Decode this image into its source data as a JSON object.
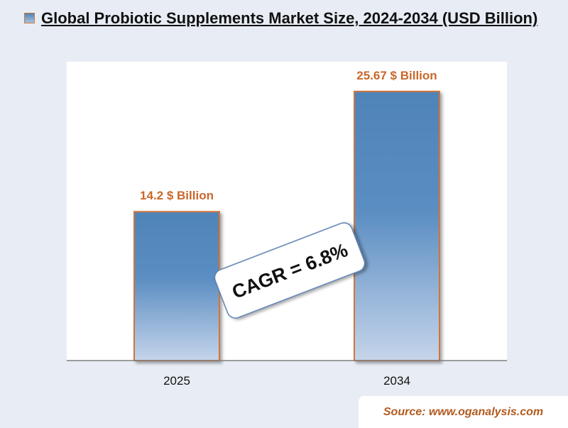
{
  "title": "Global Probiotic Supplements Market Size, 2024-2034 (USD Billion)",
  "chart_data": {
    "type": "bar",
    "title": "Global Probiotic Supplements Market Size, 2024-2034 (USD Billion)",
    "categories": [
      "2025",
      "2034"
    ],
    "values": [
      14.2,
      25.67
    ],
    "data_labels": [
      "14.2 $ Billion",
      "25.67 $ Billion"
    ],
    "xlabel": "",
    "ylabel": "",
    "ylim": [
      0,
      28.5
    ],
    "grid": false,
    "legend": "top-left",
    "annotation": "CAGR = 6.8%",
    "colors": {
      "bar_top": "#4f84b8",
      "bar_bottom": "#c5d4ea",
      "bar_border": "#d0743c",
      "label": "#c9672a"
    }
  },
  "source": "Source: www.oganalysis.com"
}
